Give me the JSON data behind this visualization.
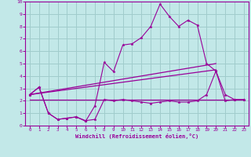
{
  "xlabel": "Windchill (Refroidissement éolien,°C)",
  "xlim": [
    -0.5,
    23.5
  ],
  "ylim": [
    0,
    10
  ],
  "xticks": [
    0,
    1,
    2,
    3,
    4,
    5,
    6,
    7,
    8,
    9,
    10,
    11,
    12,
    13,
    14,
    15,
    16,
    17,
    18,
    19,
    20,
    21,
    22,
    23
  ],
  "yticks": [
    0,
    1,
    2,
    3,
    4,
    5,
    6,
    7,
    8,
    9,
    10
  ],
  "bg_color": "#c2e8e8",
  "grid_color": "#a0cccc",
  "line_color": "#990099",
  "jagged_x": [
    0,
    1,
    2,
    3,
    4,
    5,
    6,
    7,
    8,
    9,
    10,
    11,
    12,
    13,
    14,
    15,
    16,
    17,
    18,
    19,
    20,
    21,
    22,
    23
  ],
  "jagged_y": [
    2.5,
    3.1,
    1.0,
    0.5,
    0.6,
    0.7,
    0.4,
    0.5,
    2.1,
    2.0,
    2.1,
    2.0,
    1.9,
    1.8,
    1.9,
    2.0,
    1.9,
    1.9,
    2.0,
    2.5,
    4.4,
    2.0,
    2.1,
    2.1
  ],
  "wind_x": [
    0,
    1,
    2,
    3,
    4,
    5,
    6,
    7,
    8,
    9,
    10,
    11,
    12,
    13,
    14,
    15,
    16,
    17,
    18,
    19,
    20,
    21,
    22,
    23
  ],
  "wind_y": [
    2.5,
    3.1,
    1.0,
    0.5,
    0.6,
    0.7,
    0.35,
    1.6,
    5.1,
    4.35,
    6.5,
    6.6,
    7.1,
    8.0,
    9.8,
    8.8,
    8.0,
    8.5,
    8.1,
    5.0,
    4.4,
    2.5,
    2.1,
    2.1
  ],
  "trend1_x": [
    0,
    20
  ],
  "trend1_y": [
    2.5,
    4.5
  ],
  "trend2_x": [
    0,
    20
  ],
  "trend2_y": [
    2.5,
    5.0
  ],
  "trend3_x": [
    0,
    23
  ],
  "trend3_y": [
    2.1,
    2.1
  ]
}
